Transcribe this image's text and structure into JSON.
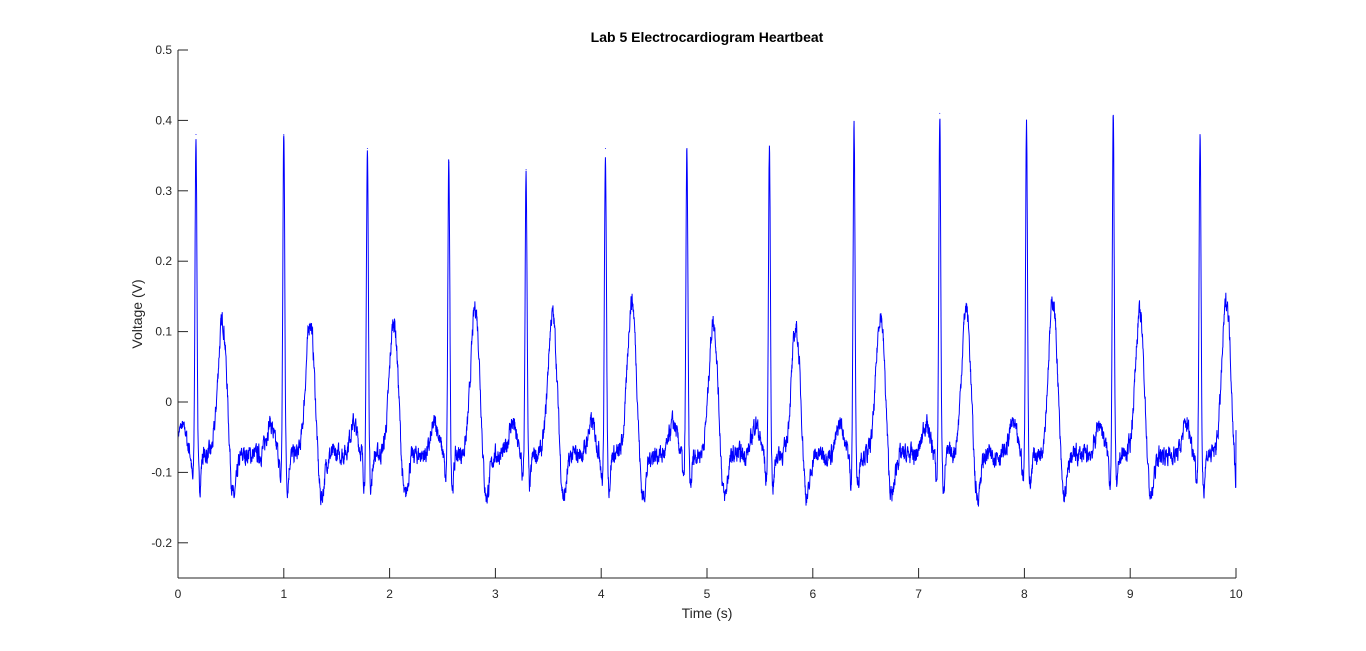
{
  "chart_data": {
    "type": "line",
    "title": "Lab 5 Electrocardiogram Heartbeat",
    "xlabel": "Time (s)",
    "ylabel": "Voltage (V)",
    "xlim": [
      0,
      10
    ],
    "ylim": [
      -0.25,
      0.5
    ],
    "xticks": [
      0,
      1,
      2,
      3,
      4,
      5,
      6,
      7,
      8,
      9,
      10
    ],
    "xtick_labels": [
      "0",
      "1",
      "2",
      "3",
      "4",
      "5",
      "6",
      "7",
      "8",
      "9",
      "10"
    ],
    "yticks": [
      -0.2,
      -0.1,
      0,
      0.1,
      0.2,
      0.3,
      0.4,
      0.5
    ],
    "ytick_labels": [
      "-0.2",
      "-0.1",
      "0",
      "0.1",
      "0.2",
      "0.3",
      "0.4",
      "0.5"
    ],
    "grid": false,
    "line_color": "#0000ff",
    "baseline": -0.075,
    "beats": [
      {
        "r_time": 0.17,
        "r_peak": 0.38,
        "t_peak": 0.11
      },
      {
        "r_time": 1.0,
        "r_peak": 0.38,
        "t_peak": 0.11
      },
      {
        "r_time": 1.79,
        "r_peak": 0.36,
        "t_peak": 0.11
      },
      {
        "r_time": 2.56,
        "r_peak": 0.34,
        "t_peak": 0.13
      },
      {
        "r_time": 3.29,
        "r_peak": 0.33,
        "t_peak": 0.12
      },
      {
        "r_time": 4.04,
        "r_peak": 0.36,
        "t_peak": 0.14
      },
      {
        "r_time": 4.81,
        "r_peak": 0.36,
        "t_peak": 0.11
      },
      {
        "r_time": 5.59,
        "r_peak": 0.36,
        "t_peak": 0.1
      },
      {
        "r_time": 6.39,
        "r_peak": 0.39,
        "t_peak": 0.12
      },
      {
        "r_time": 7.2,
        "r_peak": 0.41,
        "t_peak": 0.13
      },
      {
        "r_time": 8.02,
        "r_peak": 0.4,
        "t_peak": 0.14
      },
      {
        "r_time": 8.84,
        "r_peak": 0.4,
        "t_peak": 0.12
      },
      {
        "r_time": 9.66,
        "r_peak": 0.38,
        "t_peak": 0.14
      }
    ],
    "s_trough_min": -0.17,
    "end_value": -0.04
  }
}
